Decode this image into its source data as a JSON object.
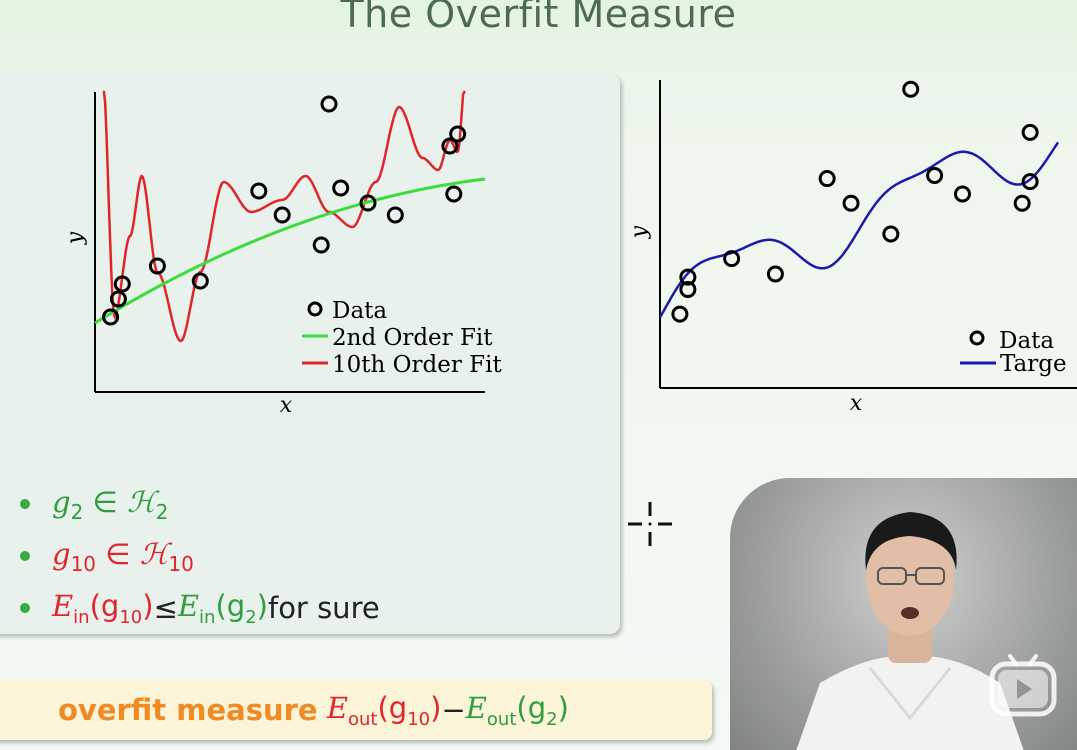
{
  "title": "The Overfit Measure",
  "left_chart": {
    "xlabel": "x",
    "ylabel": "y",
    "legend": [
      {
        "label": "Data",
        "kind": "marker"
      },
      {
        "label": "2nd Order Fit",
        "color": "#3cdc3c"
      },
      {
        "label": "10th Order Fit",
        "color": "#e0262b"
      }
    ]
  },
  "right_chart": {
    "xlabel": "x",
    "ylabel": "y",
    "legend": [
      {
        "label": "Data",
        "kind": "marker"
      },
      {
        "label": "Targe",
        "color": "#1a1aad"
      }
    ]
  },
  "bullets": {
    "b1": {
      "g": "g",
      "sub": "2",
      "rel": " ∈ ",
      "H": "ℋ",
      "Hsub": "2"
    },
    "b2": {
      "g": "g",
      "sub": "10",
      "rel": " ∈ ",
      "H": "ℋ",
      "Hsub": "10"
    },
    "b3": {
      "E1": "E",
      "E1sub": "in",
      "arg1": "(g",
      "arg1sub": "10",
      "close1": ")",
      "rel": " ≤ ",
      "E2": "E",
      "E2sub": "in",
      "arg2": "(g",
      "arg2sub": "2",
      "close2": ")",
      "suffix": " for sure"
    }
  },
  "measure": {
    "label": "overfit measure",
    "E1": "E",
    "E1sub": "out",
    "arg1": "(g",
    "arg1sub": "10",
    "close1": ")",
    "minus": " − ",
    "E2": "E",
    "E2sub": "out",
    "arg2": "(g",
    "arg2sub": "2",
    "close2": ")"
  },
  "colors": {
    "accent_green": "#2e9e3e",
    "accent_red": "#e0262b",
    "accent_orange": "#f08a22",
    "target_blue": "#1a1aad"
  },
  "icons": {
    "crosshair": "crosshair-icon",
    "bilibili": "bilibili-play-icon"
  },
  "chart_data": [
    {
      "type": "scatter",
      "xlabel": "x",
      "ylabel": "y",
      "series": [
        {
          "name": "Data",
          "kind": "points",
          "x": [
            0.04,
            0.06,
            0.07,
            0.16,
            0.27,
            0.42,
            0.48,
            0.58,
            0.6,
            0.63,
            0.7,
            0.77,
            0.91,
            0.92,
            0.93
          ],
          "y": [
            0.25,
            0.31,
            0.36,
            0.42,
            0.37,
            0.67,
            0.59,
            0.49,
            0.96,
            0.68,
            0.63,
            0.59,
            0.82,
            0.66,
            0.86
          ]
        },
        {
          "name": "2nd Order Fit",
          "kind": "line"
        },
        {
          "name": "10th Order Fit",
          "kind": "line"
        }
      ]
    },
    {
      "type": "scatter",
      "xlabel": "x",
      "ylabel": "y",
      "series": [
        {
          "name": "Data",
          "kind": "points",
          "x": [
            0.05,
            0.07,
            0.07,
            0.18,
            0.29,
            0.42,
            0.48,
            0.58,
            0.63,
            0.69,
            0.76,
            0.91,
            0.93,
            0.93
          ],
          "y": [
            0.24,
            0.32,
            0.36,
            0.42,
            0.37,
            0.68,
            0.6,
            0.5,
            0.97,
            0.69,
            0.63,
            0.6,
            0.83,
            0.67
          ]
        },
        {
          "name": "Targe",
          "kind": "line"
        }
      ]
    }
  ]
}
